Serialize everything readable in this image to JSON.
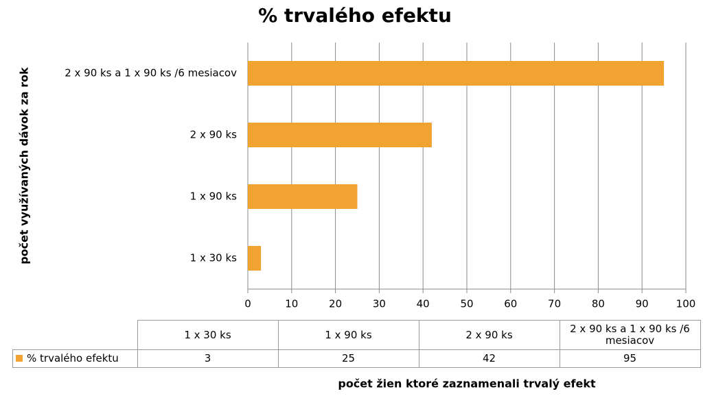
{
  "chart_data": {
    "type": "hbar",
    "title": "% trvalého efektu",
    "x_label": "počet žien ktoré zaznamenali  trvalý efekt",
    "y_label": "počet využívaných dávok za rok",
    "categories": [
      "1 x 30 ks",
      "1 x 90 ks",
      "2 x 90 ks",
      "2 x 90 ks a 1 x 90 ks /6 mesiacov"
    ],
    "series": [
      {
        "name": "% trvalého efektu",
        "color": "#f0a330",
        "values": [
          3,
          25,
          42,
          95
        ]
      }
    ],
    "xlim": [
      0,
      100
    ],
    "xticks": [
      0,
      10,
      20,
      30,
      40,
      50,
      60,
      70,
      80,
      90,
      100
    ],
    "grid": true
  }
}
